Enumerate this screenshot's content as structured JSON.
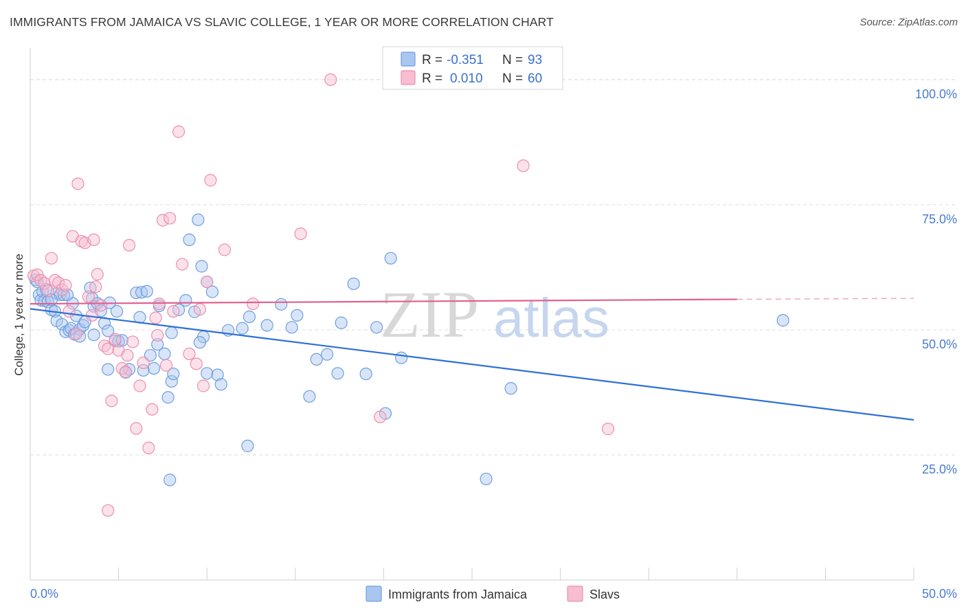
{
  "header": {
    "title": "IMMIGRANTS FROM JAMAICA VS SLAVIC COLLEGE, 1 YEAR OR MORE CORRELATION CHART",
    "source": "Source: ZipAtlas.com"
  },
  "watermark": {
    "zip": "ZIP",
    "atlas": "atlas"
  },
  "legend": {
    "rows": [
      {
        "r_label": "R =",
        "r_value": "-0.351",
        "n_label": "N =",
        "n_value": "93",
        "color": "#a9c6f0",
        "edge": "#6f9ee0"
      },
      {
        "r_label": "R =",
        "r_value": "0.010",
        "n_label": "N =",
        "n_value": "60",
        "color": "#f7bdd0",
        "edge": "#ec8fae"
      }
    ]
  },
  "bottom_legend": [
    {
      "label": "Immigrants from Jamaica",
      "color": "#a9c6f0",
      "edge": "#6f9ee0"
    },
    {
      "label": "Slavs",
      "color": "#f7bdd0",
      "edge": "#ec8fae"
    }
  ],
  "chart_data": {
    "type": "scatter",
    "title": "IMMIGRANTS FROM JAMAICA VS SLAVIC COLLEGE, 1 YEAR OR MORE CORRELATION CHART",
    "xlabel": "",
    "ylabel": "College, 1 year or more",
    "xlim": [
      0,
      50
    ],
    "ylim": [
      0,
      105
    ],
    "x_tick_labels": [
      "0.0%",
      "50.0%"
    ],
    "y_ticks": [
      25,
      50,
      75,
      100
    ],
    "y_tick_labels": [
      "25.0%",
      "50.0%",
      "75.0%",
      "100.0%"
    ],
    "grid": true,
    "legend_position": "top-center",
    "series": [
      {
        "name": "Immigrants from Jamaica",
        "color": "#6f9ee0",
        "fill": "#a9c6f0",
        "line_color": "#2e6fd6",
        "trend": {
          "x": [
            0,
            50
          ],
          "y": [
            54.2,
            32.0
          ]
        },
        "points": [
          [
            0.3,
            60.0
          ],
          [
            0.4,
            59.6
          ],
          [
            0.5,
            57.0
          ],
          [
            0.6,
            55.9
          ],
          [
            0.7,
            57.7
          ],
          [
            0.9,
            58.1
          ],
          [
            0.8,
            55.8
          ],
          [
            1.0,
            55.6
          ],
          [
            1.2,
            54.0
          ],
          [
            1.4,
            53.7
          ],
          [
            1.5,
            57.3
          ],
          [
            1.7,
            57.0
          ],
          [
            1.5,
            51.8
          ],
          [
            1.8,
            51.1
          ],
          [
            2.0,
            49.6
          ],
          [
            2.2,
            49.9
          ],
          [
            2.3,
            50.3
          ],
          [
            2.5,
            49.1
          ],
          [
            2.6,
            52.8
          ],
          [
            2.8,
            50.1
          ],
          [
            3.0,
            50.9
          ],
          [
            2.4,
            55.3
          ],
          [
            3.4,
            58.4
          ],
          [
            3.5,
            56.3
          ],
          [
            3.6,
            54.7
          ],
          [
            3.8,
            55.3
          ],
          [
            4.0,
            53.8
          ],
          [
            4.2,
            51.3
          ],
          [
            4.4,
            49.8
          ],
          [
            4.8,
            47.8
          ],
          [
            5.0,
            47.7
          ],
          [
            5.2,
            47.9
          ],
          [
            4.4,
            42.1
          ],
          [
            5.6,
            42.1
          ],
          [
            6.4,
            41.9
          ],
          [
            7.0,
            42.3
          ],
          [
            7.2,
            47.1
          ],
          [
            7.6,
            45.2
          ],
          [
            8.0,
            39.7
          ],
          [
            8.1,
            41.2
          ],
          [
            7.8,
            36.5
          ],
          [
            8.0,
            49.4
          ],
          [
            8.4,
            54.0
          ],
          [
            7.3,
            54.8
          ],
          [
            6.0,
            57.4
          ],
          [
            6.3,
            57.5
          ],
          [
            6.6,
            57.7
          ],
          [
            4.9,
            53.7
          ],
          [
            4.5,
            55.4
          ],
          [
            9.0,
            68.0
          ],
          [
            9.5,
            72.0
          ],
          [
            9.7,
            62.7
          ],
          [
            10.0,
            59.6
          ],
          [
            10.3,
            57.6
          ],
          [
            9.3,
            53.6
          ],
          [
            9.8,
            48.6
          ],
          [
            10.0,
            41.3
          ],
          [
            10.6,
            41.0
          ],
          [
            10.8,
            39.1
          ],
          [
            11.2,
            49.9
          ],
          [
            12.0,
            50.3
          ],
          [
            12.4,
            52.6
          ],
          [
            13.4,
            50.9
          ],
          [
            14.2,
            55.1
          ],
          [
            14.8,
            50.5
          ],
          [
            15.1,
            52.9
          ],
          [
            15.8,
            36.7
          ],
          [
            16.2,
            44.1
          ],
          [
            16.8,
            45.1
          ],
          [
            17.6,
            51.4
          ],
          [
            17.4,
            41.3
          ],
          [
            18.3,
            59.2
          ],
          [
            19.0,
            41.2
          ],
          [
            19.6,
            50.5
          ],
          [
            20.1,
            33.3
          ],
          [
            20.4,
            64.3
          ],
          [
            21.0,
            44.4
          ],
          [
            12.3,
            26.8
          ],
          [
            7.9,
            20.0
          ],
          [
            25.8,
            20.2
          ],
          [
            27.2,
            38.3
          ],
          [
            42.6,
            51.9
          ],
          [
            3.6,
            49.0
          ],
          [
            2.8,
            48.7
          ],
          [
            1.9,
            57.0
          ],
          [
            3.1,
            51.6
          ],
          [
            5.4,
            41.5
          ],
          [
            6.8,
            44.9
          ],
          [
            9.6,
            47.5
          ],
          [
            8.8,
            55.9
          ],
          [
            6.2,
            52.5
          ],
          [
            1.2,
            56.0
          ],
          [
            2.1,
            57.0
          ]
        ]
      },
      {
        "name": "Slavs",
        "color": "#ec8fae",
        "fill": "#f7bdd0",
        "line_color": "#e0608e",
        "trend": {
          "x": [
            0,
            40
          ],
          "y": [
            55.2,
            56.1
          ]
        },
        "trend_dashed_to": {
          "x": 50,
          "y": 56.3
        },
        "points": [
          [
            0.2,
            60.8
          ],
          [
            0.4,
            61.0
          ],
          [
            0.6,
            59.9
          ],
          [
            0.8,
            59.3
          ],
          [
            1.0,
            57.8
          ],
          [
            1.2,
            64.3
          ],
          [
            1.4,
            59.9
          ],
          [
            1.6,
            59.4
          ],
          [
            1.8,
            58.0
          ],
          [
            2.0,
            58.9
          ],
          [
            2.2,
            53.7
          ],
          [
            2.4,
            68.7
          ],
          [
            2.6,
            49.2
          ],
          [
            2.7,
            79.2
          ],
          [
            2.9,
            67.7
          ],
          [
            3.1,
            67.4
          ],
          [
            3.3,
            56.6
          ],
          [
            3.5,
            52.9
          ],
          [
            3.6,
            68.0
          ],
          [
            3.8,
            61.1
          ],
          [
            4.0,
            54.9
          ],
          [
            4.2,
            46.8
          ],
          [
            4.4,
            46.2
          ],
          [
            4.6,
            35.8
          ],
          [
            4.8,
            48.1
          ],
          [
            5.0,
            45.9
          ],
          [
            5.2,
            42.3
          ],
          [
            5.4,
            41.6
          ],
          [
            5.6,
            66.9
          ],
          [
            5.8,
            47.6
          ],
          [
            6.0,
            30.3
          ],
          [
            6.2,
            38.8
          ],
          [
            6.4,
            43.4
          ],
          [
            6.7,
            26.4
          ],
          [
            6.9,
            34.1
          ],
          [
            7.1,
            52.4
          ],
          [
            7.3,
            55.2
          ],
          [
            7.5,
            71.9
          ],
          [
            7.7,
            42.9
          ],
          [
            7.9,
            72.3
          ],
          [
            8.1,
            53.7
          ],
          [
            8.4,
            89.6
          ],
          [
            8.6,
            63.1
          ],
          [
            9.0,
            45.2
          ],
          [
            9.4,
            43.2
          ],
          [
            9.6,
            54.1
          ],
          [
            9.8,
            38.8
          ],
          [
            10.0,
            59.6
          ],
          [
            10.2,
            79.9
          ],
          [
            11.0,
            66.0
          ],
          [
            12.6,
            55.2
          ],
          [
            15.3,
            69.2
          ],
          [
            4.4,
            13.9
          ],
          [
            17.0,
            100.0
          ],
          [
            19.8,
            32.6
          ],
          [
            27.9,
            82.8
          ],
          [
            32.7,
            30.2
          ],
          [
            5.5,
            44.9
          ],
          [
            7.2,
            48.9
          ],
          [
            3.7,
            58.6
          ]
        ]
      }
    ]
  }
}
